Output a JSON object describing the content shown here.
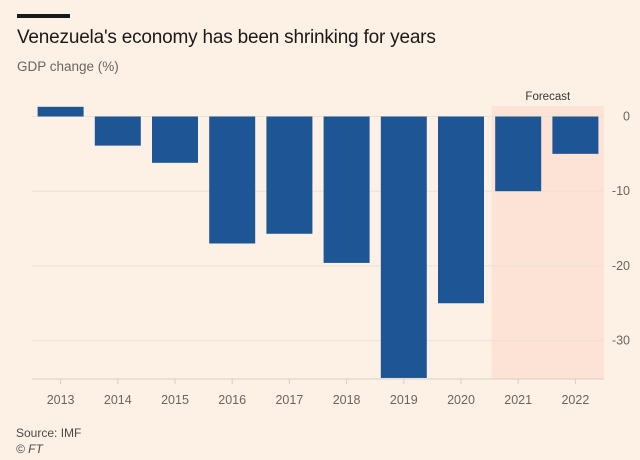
{
  "header": {
    "title": "Venezuela's economy has been shrinking for years",
    "subtitle": "GDP change (%)"
  },
  "footer": {
    "source": "Source: IMF",
    "credit": "© FT"
  },
  "colors": {
    "bar": "#1e5594",
    "background": "#fdf1e6",
    "forecast_band": "#fde3d6",
    "gridline": "#ebe1d7"
  },
  "chart_data": {
    "type": "bar",
    "title": "Venezuela's economy has been shrinking for years",
    "ylabel": "GDP change (%)",
    "xlabel": "",
    "categories": [
      "2013",
      "2014",
      "2015",
      "2016",
      "2017",
      "2018",
      "2019",
      "2020",
      "2021",
      "2022"
    ],
    "values": [
      1.3,
      -3.9,
      -6.2,
      -17.0,
      -15.7,
      -19.6,
      -35.0,
      -25.0,
      -10.0,
      -5.0
    ],
    "ylim": [
      -35,
      2
    ],
    "yticks": [
      0,
      -10,
      -20,
      -30
    ],
    "ytick_labels": [
      "0",
      "-10",
      "-20",
      "-30"
    ],
    "y_axis_side": "right",
    "grid": true,
    "forecast": {
      "label": "Forecast",
      "categories": [
        "2021",
        "2022"
      ]
    }
  }
}
